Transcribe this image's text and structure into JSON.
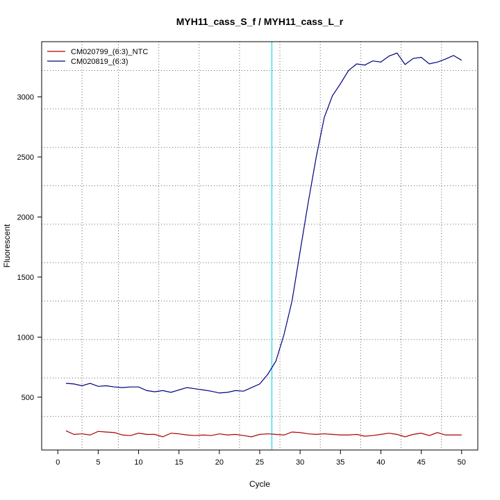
{
  "chart_data": {
    "type": "line",
    "title": "MYH11_cass_S_f / MYH11_cass_L_r",
    "xlabel": "Cycle",
    "ylabel": "Fluorescent",
    "xlim": [
      -2,
      52
    ],
    "ylim": [
      60,
      3460
    ],
    "x_ticks": [
      0,
      5,
      10,
      15,
      20,
      25,
      30,
      35,
      40,
      45,
      50
    ],
    "y_ticks": [
      500,
      1000,
      1500,
      2000,
      2500,
      3000
    ],
    "grid": {
      "style": "dotted",
      "x_lines": [
        3,
        7.5,
        12.5,
        17.5,
        22.5,
        27.5,
        32.5,
        37.5,
        42.5,
        47.5
      ],
      "y_lines": [
        340,
        660,
        980,
        1300,
        1620,
        1940,
        2260,
        2580,
        2900,
        3220
      ]
    },
    "threshold": {
      "orientation": "vertical",
      "x": 26.5,
      "color": "#40e0e0"
    },
    "legend_position": "top-left",
    "x": [
      1,
      2,
      3,
      4,
      5,
      6,
      7,
      8,
      9,
      10,
      11,
      12,
      13,
      14,
      15,
      16,
      17,
      18,
      19,
      20,
      21,
      22,
      23,
      24,
      25,
      26,
      27,
      28,
      29,
      30,
      31,
      32,
      33,
      34,
      35,
      36,
      37,
      38,
      39,
      40,
      41,
      42,
      43,
      44,
      45,
      46,
      47,
      48,
      49,
      50
    ],
    "series": [
      {
        "name": "CM020799_(6:3)_NTC",
        "color": "#aa0000",
        "values": [
          220,
          190,
          195,
          185,
          215,
          210,
          205,
          185,
          180,
          200,
          190,
          190,
          170,
          200,
          195,
          185,
          180,
          185,
          180,
          195,
          185,
          190,
          180,
          170,
          190,
          195,
          190,
          185,
          210,
          205,
          195,
          190,
          195,
          190,
          185,
          185,
          190,
          175,
          180,
          190,
          200,
          190,
          170,
          190,
          200,
          180,
          205,
          185,
          185,
          185
        ]
      },
      {
        "name": "CM020819_(6:3)",
        "color": "#000080",
        "values": [
          615,
          610,
          595,
          615,
          590,
          595,
          585,
          580,
          585,
          585,
          555,
          545,
          555,
          540,
          560,
          580,
          570,
          560,
          550,
          535,
          540,
          555,
          550,
          580,
          610,
          690,
          800,
          1020,
          1300,
          1710,
          2120,
          2500,
          2830,
          3010,
          3110,
          3220,
          3275,
          3265,
          3300,
          3290,
          3340,
          3365,
          3270,
          3320,
          3330,
          3275,
          3290,
          3315,
          3345,
          3305
        ]
      }
    ]
  }
}
